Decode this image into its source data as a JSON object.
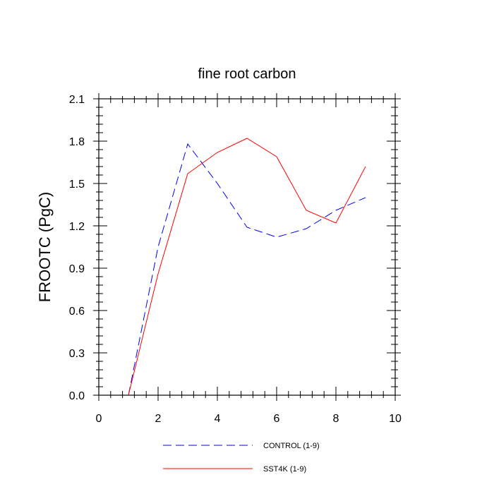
{
  "chart_data": {
    "type": "line",
    "title": "fine root carbon",
    "xlabel": "",
    "ylabel": "FROOTC  (PgC)",
    "xlim": [
      0,
      10
    ],
    "ylim": [
      0,
      2.1
    ],
    "x_ticks": [
      0,
      2,
      4,
      6,
      8,
      10
    ],
    "x_tick_labels": [
      "0",
      "2",
      "4",
      "6",
      "8",
      "10"
    ],
    "y_ticks": [
      0,
      0.3,
      0.6,
      0.9,
      1.2,
      1.5,
      1.8,
      2.1
    ],
    "y_tick_labels": [
      "0.0",
      "0.3",
      "0.6",
      "0.9",
      "1.2",
      "1.5",
      "1.8",
      "2.1"
    ],
    "grid": false,
    "legend_position": "bottom",
    "series": [
      {
        "name": "CONTROL (1-9)",
        "color": "#0000ff",
        "style": "dashed",
        "x": [
          1,
          2,
          3,
          4,
          5,
          6,
          7,
          8,
          9
        ],
        "values": [
          0.0,
          1.05,
          1.78,
          1.5,
          1.19,
          1.12,
          1.18,
          1.31,
          1.4
        ]
      },
      {
        "name": "SST4K (1-9)",
        "color": "#ff0000",
        "style": "solid",
        "x": [
          1,
          2,
          3,
          4,
          5,
          6,
          7,
          8,
          9
        ],
        "values": [
          0.0,
          0.86,
          1.57,
          1.72,
          1.82,
          1.69,
          1.31,
          1.22,
          1.62
        ]
      }
    ]
  }
}
